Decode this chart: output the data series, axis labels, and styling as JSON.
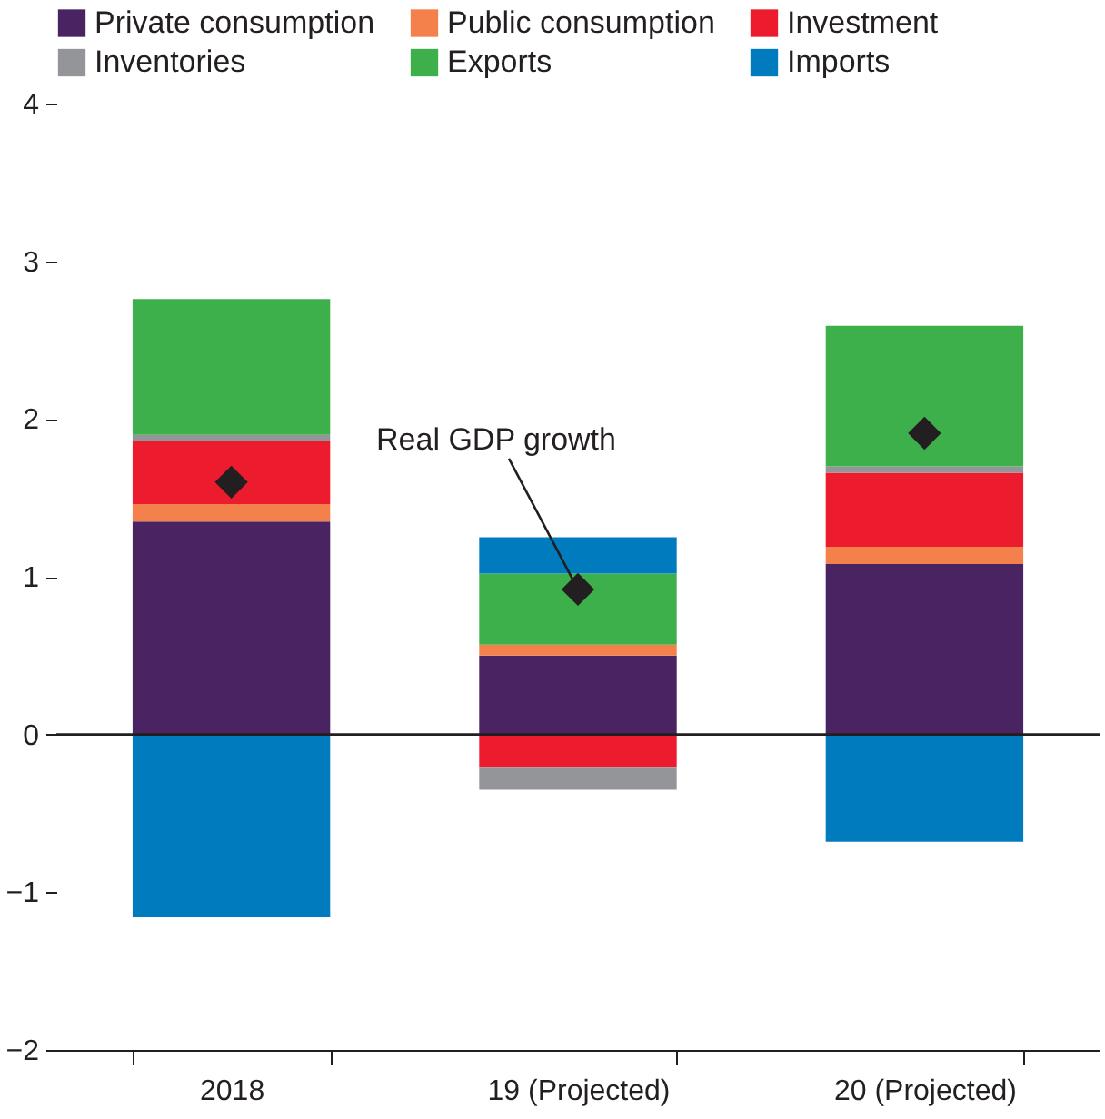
{
  "chart_data": {
    "type": "bar",
    "stacked": true,
    "categories": [
      "2018",
      "19\n(Projected)",
      "20\n(Projected)"
    ],
    "series": [
      {
        "name": "Private consumption",
        "color": "#4a2362",
        "values": [
          1.35,
          0.5,
          1.08
        ]
      },
      {
        "name": "Public consumption",
        "color": "#f4814b",
        "values": [
          0.11,
          0.07,
          0.11
        ]
      },
      {
        "name": "Investment",
        "color": "#ec1c2e",
        "values": [
          0.4,
          -0.21,
          0.47
        ]
      },
      {
        "name": "Inventories",
        "color": "#939598",
        "values": [
          0.04,
          -0.14,
          0.04
        ]
      },
      {
        "name": "Exports",
        "color": "#3db04b",
        "values": [
          0.86,
          0.45,
          0.89
        ]
      },
      {
        "name": "Imports",
        "color": "#007bbd",
        "values": [
          -1.16,
          0.23,
          -0.68
        ]
      },
      {
        "name": "Real GDP growth",
        "type": "scatter",
        "marker": "diamond",
        "color": "#231f20",
        "values": [
          1.6,
          0.92,
          1.91
        ]
      }
    ],
    "ylim": [
      -2,
      4
    ],
    "yticks": [
      -2,
      -1,
      0,
      1,
      2,
      3,
      4
    ],
    "grid": false,
    "legend": "top",
    "ref_lines": [
      {
        "axis": "y",
        "value": 0,
        "color": "#231f20"
      }
    ]
  }
}
